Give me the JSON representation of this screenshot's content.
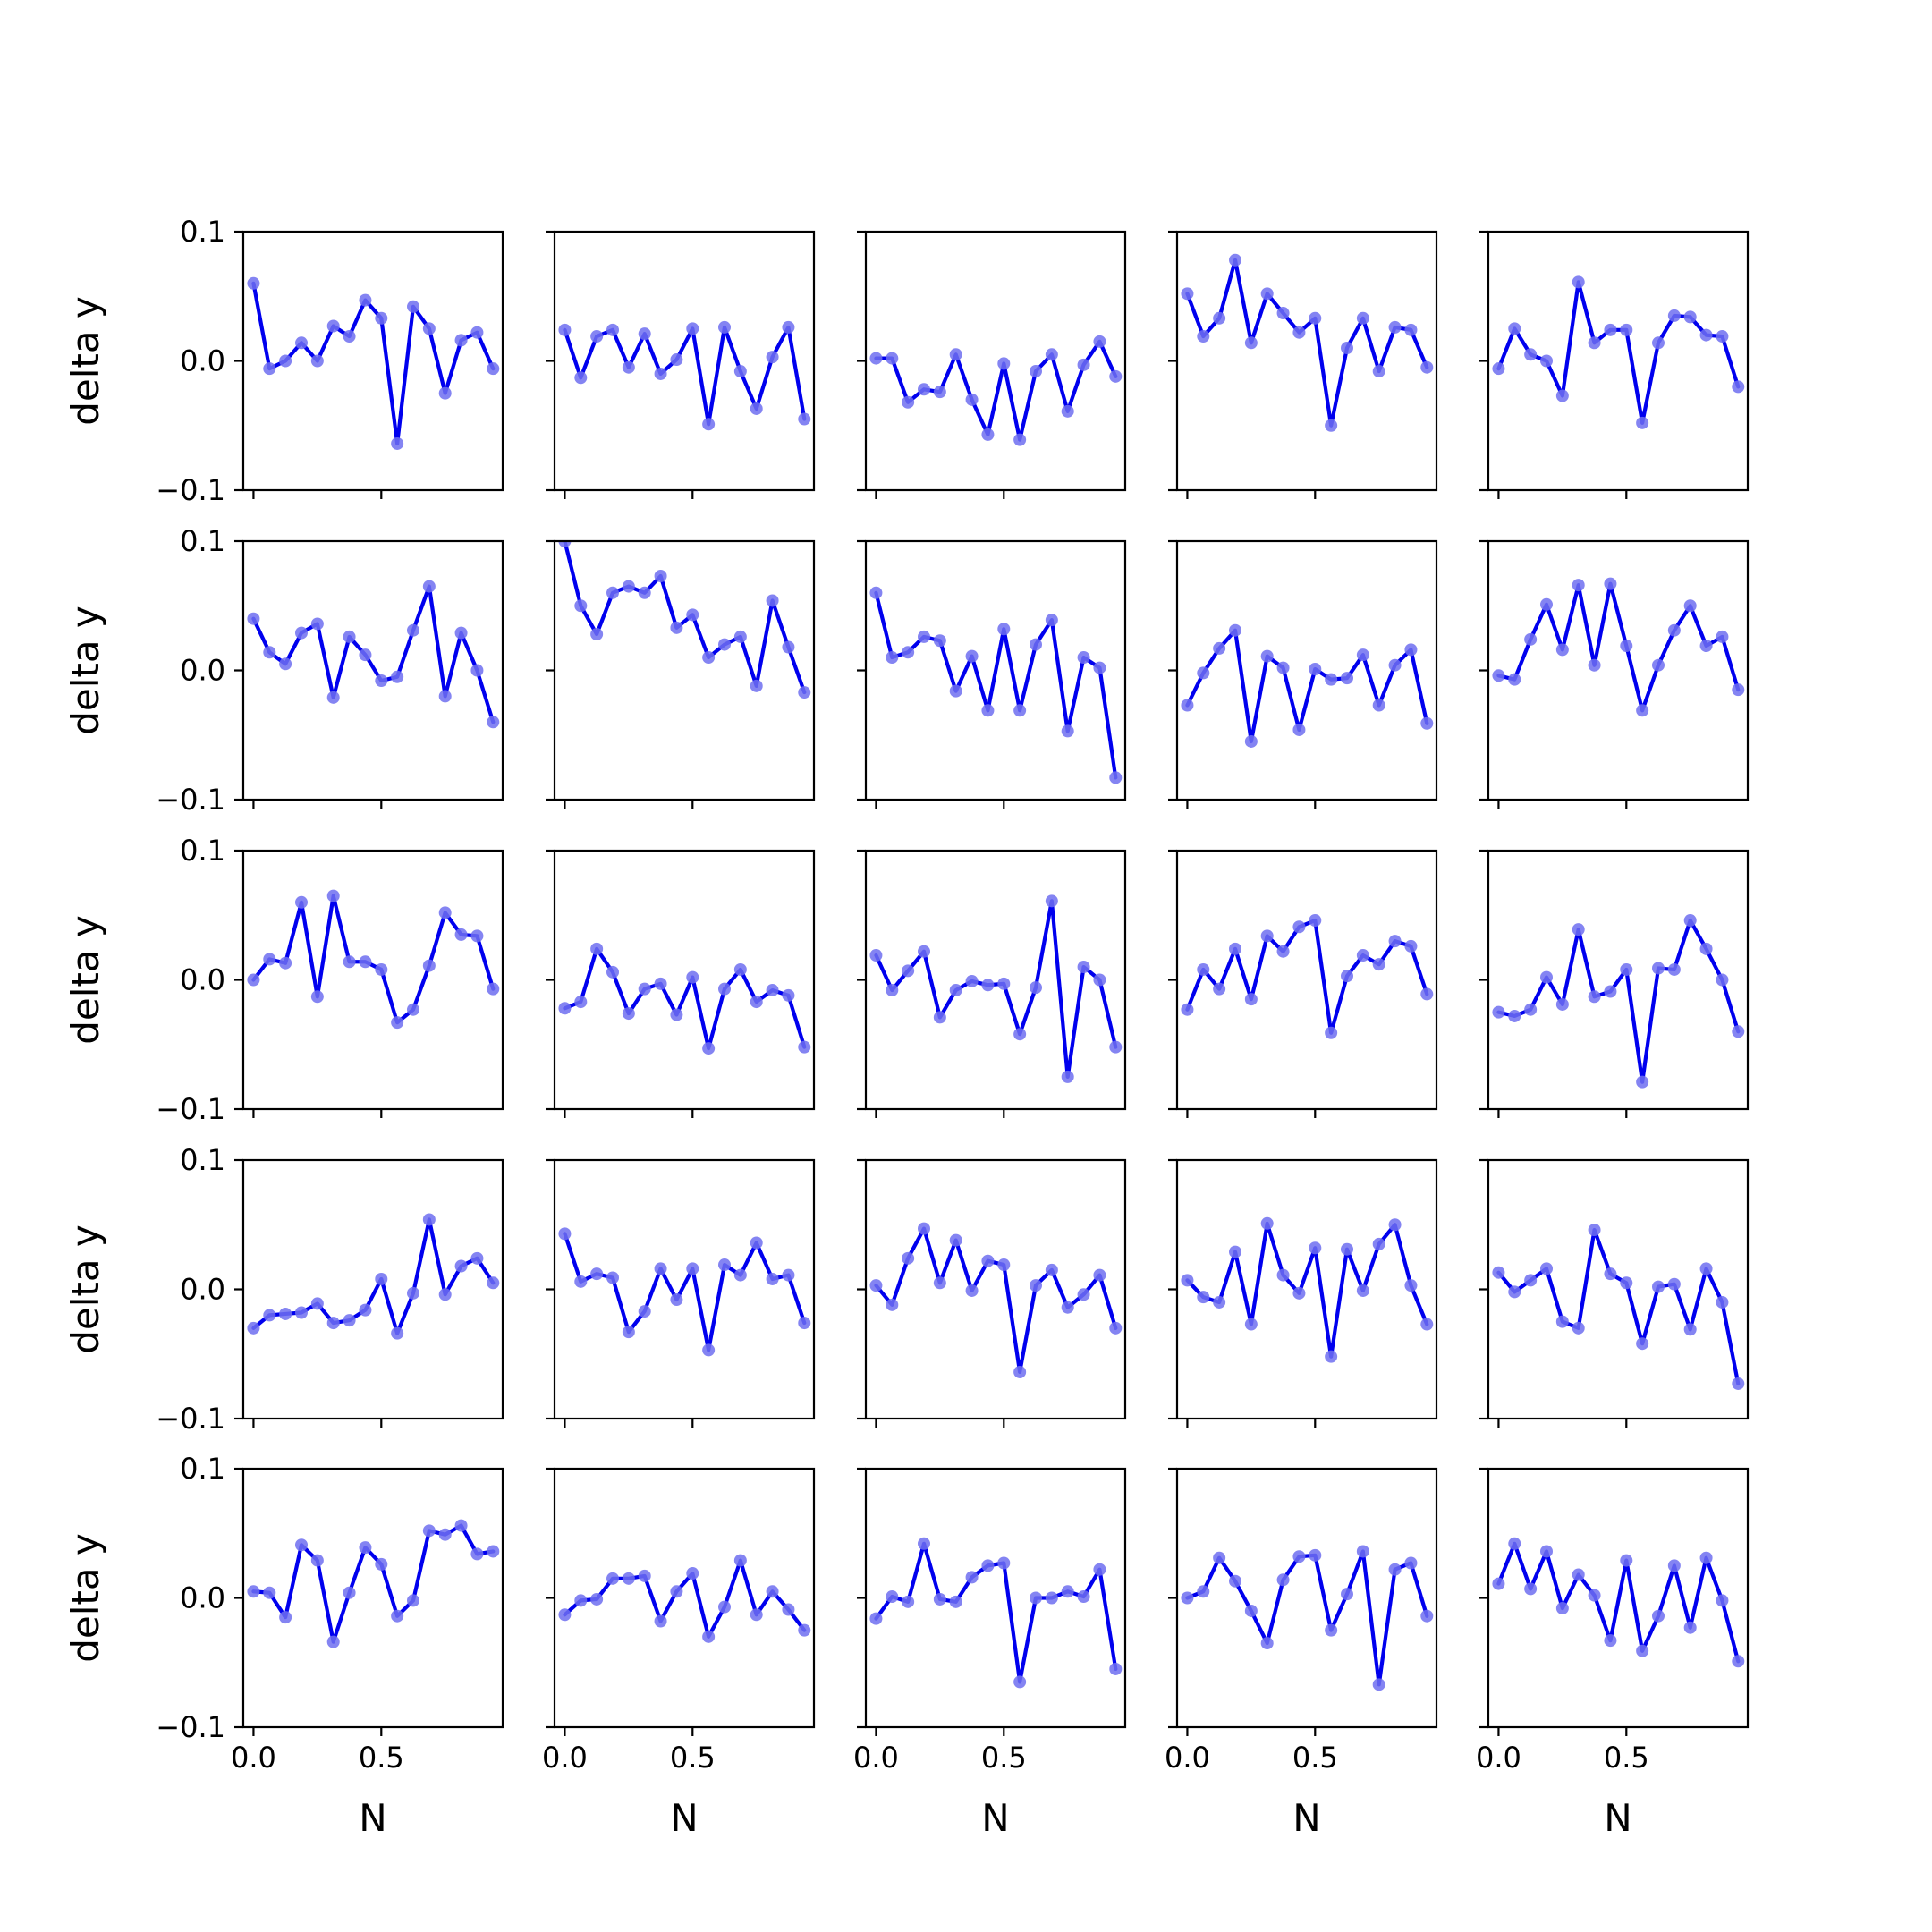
{
  "figure": {
    "ylabel": "delta y",
    "xlabel": "N",
    "line_color": "#0000ee",
    "marker_color": "#6f6ff0",
    "background": "#ffffff"
  },
  "chart_data": {
    "type": "line",
    "layout": "5x5 grid of small multiples, shared x and y axes",
    "x": [
      0,
      0.0625,
      0.125,
      0.1875,
      0.25,
      0.3125,
      0.375,
      0.4375,
      0.5,
      0.5625,
      0.625,
      0.6875,
      0.75,
      0.8125,
      0.875,
      0.9375
    ],
    "xlim": [
      -0.04,
      0.975
    ],
    "ylim": [
      -0.1,
      0.1
    ],
    "xticks": [
      0.0,
      0.5
    ],
    "xtick_labels": [
      "0.0",
      "0.5"
    ],
    "yticks": [
      -0.1,
      0.0,
      0.1
    ],
    "ytick_labels": [
      "−0.1",
      "0.0",
      "0.1"
    ],
    "xlabel": "N",
    "ylabel": "delta y",
    "grid": false,
    "legend": "none",
    "panels": [
      [
        0.06,
        -0.006,
        0.0,
        0.014,
        0.0,
        0.027,
        0.019,
        0.047,
        0.033,
        -0.064,
        0.042,
        0.025,
        -0.025,
        0.016,
        0.022,
        -0.006
      ],
      [
        0.024,
        -0.013,
        0.019,
        0.024,
        -0.005,
        0.021,
        -0.01,
        0.001,
        0.025,
        -0.049,
        0.026,
        -0.008,
        -0.037,
        0.003,
        0.026,
        -0.045
      ],
      [
        0.002,
        0.002,
        -0.032,
        -0.022,
        -0.024,
        0.005,
        -0.03,
        -0.057,
        -0.002,
        -0.061,
        -0.008,
        0.005,
        -0.039,
        -0.003,
        0.015,
        -0.012
      ],
      [
        0.052,
        0.019,
        0.033,
        0.078,
        0.014,
        0.052,
        0.037,
        0.022,
        0.033,
        -0.05,
        0.01,
        0.033,
        -0.008,
        0.026,
        0.024,
        -0.005
      ],
      [
        -0.006,
        0.025,
        0.005,
        0.0,
        -0.027,
        0.061,
        0.014,
        0.024,
        0.024,
        -0.048,
        0.014,
        0.035,
        0.034,
        0.02,
        0.019,
        -0.02
      ],
      [
        0.04,
        0.014,
        0.005,
        0.029,
        0.036,
        -0.021,
        0.026,
        0.012,
        -0.008,
        -0.005,
        0.031,
        0.065,
        -0.02,
        0.029,
        0.0,
        -0.04
      ],
      [
        0.1,
        0.05,
        0.028,
        0.06,
        0.065,
        0.06,
        0.073,
        0.033,
        0.043,
        0.01,
        0.02,
        0.026,
        -0.012,
        0.054,
        0.018,
        -0.017
      ],
      [
        0.06,
        0.01,
        0.014,
        0.026,
        0.023,
        -0.016,
        0.011,
        -0.031,
        0.032,
        -0.031,
        0.02,
        0.039,
        -0.047,
        0.01,
        0.002,
        -0.083
      ],
      [
        -0.027,
        -0.002,
        0.017,
        0.031,
        -0.055,
        0.011,
        0.002,
        -0.046,
        0.001,
        -0.007,
        -0.006,
        0.012,
        -0.027,
        0.004,
        0.016,
        -0.041
      ],
      [
        -0.004,
        -0.007,
        0.024,
        0.051,
        0.016,
        0.066,
        0.004,
        0.067,
        0.019,
        -0.031,
        0.004,
        0.031,
        0.05,
        0.019,
        0.026,
        -0.015
      ]
    ],
    "panels_rows_3_to_5": [
      [
        0.0,
        0.016,
        0.013,
        0.06,
        -0.013,
        0.065,
        0.014,
        0.014,
        0.008,
        -0.033,
        -0.023,
        0.011,
        0.052,
        0.035,
        0.034,
        -0.007
      ],
      [
        -0.022,
        -0.017,
        0.024,
        0.006,
        -0.026,
        -0.007,
        -0.003,
        -0.027,
        0.002,
        -0.053,
        -0.007,
        0.008,
        -0.017,
        -0.008,
        -0.012,
        -0.052
      ],
      [
        0.019,
        -0.008,
        0.007,
        0.022,
        -0.029,
        -0.008,
        -0.001,
        -0.004,
        -0.003,
        -0.042,
        -0.006,
        0.061,
        -0.075,
        0.01,
        0.0,
        -0.052
      ],
      [
        -0.023,
        0.008,
        -0.007,
        0.024,
        -0.015,
        0.034,
        0.022,
        0.041,
        0.046,
        -0.041,
        0.003,
        0.019,
        0.012,
        0.03,
        0.026,
        -0.011
      ],
      [
        -0.025,
        -0.028,
        -0.023,
        0.002,
        -0.019,
        0.039,
        -0.013,
        -0.009,
        0.008,
        -0.079,
        0.009,
        0.008,
        0.046,
        0.024,
        0.0,
        -0.04
      ],
      [
        -0.03,
        -0.02,
        -0.019,
        -0.018,
        -0.011,
        -0.026,
        -0.024,
        -0.016,
        0.008,
        -0.034,
        -0.003,
        0.054,
        -0.004,
        0.018,
        0.024,
        0.005
      ],
      [
        0.043,
        0.006,
        0.012,
        0.009,
        -0.033,
        -0.017,
        0.016,
        -0.008,
        0.016,
        -0.047,
        0.019,
        0.011,
        0.036,
        0.008,
        0.011,
        -0.026
      ],
      [
        0.003,
        -0.012,
        0.024,
        0.047,
        0.005,
        0.038,
        -0.001,
        0.022,
        0.019,
        -0.064,
        0.003,
        0.015,
        -0.014,
        -0.004,
        0.011,
        -0.03
      ],
      [
        0.007,
        -0.006,
        -0.01,
        0.029,
        -0.027,
        0.051,
        0.011,
        -0.003,
        0.032,
        -0.052,
        0.031,
        -0.001,
        0.035,
        0.05,
        0.003,
        -0.027
      ],
      [
        0.013,
        -0.002,
        0.007,
        0.016,
        -0.025,
        -0.03,
        0.046,
        0.012,
        0.005,
        -0.042,
        0.002,
        0.004,
        -0.031,
        0.016,
        -0.01,
        -0.073
      ],
      [
        0.005,
        0.004,
        -0.015,
        0.041,
        0.029,
        -0.034,
        0.004,
        0.039,
        0.026,
        -0.014,
        -0.002,
        0.052,
        0.049,
        0.056,
        0.034,
        0.036
      ],
      [
        -0.013,
        -0.002,
        -0.001,
        0.015,
        0.015,
        0.017,
        -0.018,
        0.005,
        0.019,
        -0.03,
        -0.007,
        0.029,
        -0.013,
        0.005,
        -0.009,
        -0.025
      ],
      [
        -0.016,
        0.001,
        -0.003,
        0.042,
        -0.001,
        -0.003,
        0.016,
        0.025,
        0.027,
        -0.065,
        0.0,
        0.0,
        0.005,
        0.001,
        0.022,
        -0.055
      ],
      [
        0.0,
        0.005,
        0.031,
        0.013,
        -0.01,
        -0.035,
        0.014,
        0.032,
        0.033,
        -0.025,
        0.003,
        0.036,
        -0.067,
        0.022,
        0.027,
        -0.014
      ],
      [
        0.011,
        0.042,
        0.007,
        0.036,
        -0.008,
        0.018,
        0.002,
        -0.033,
        0.029,
        -0.041,
        -0.014,
        0.025,
        -0.023,
        0.031,
        -0.002,
        -0.049
      ]
    ]
  }
}
